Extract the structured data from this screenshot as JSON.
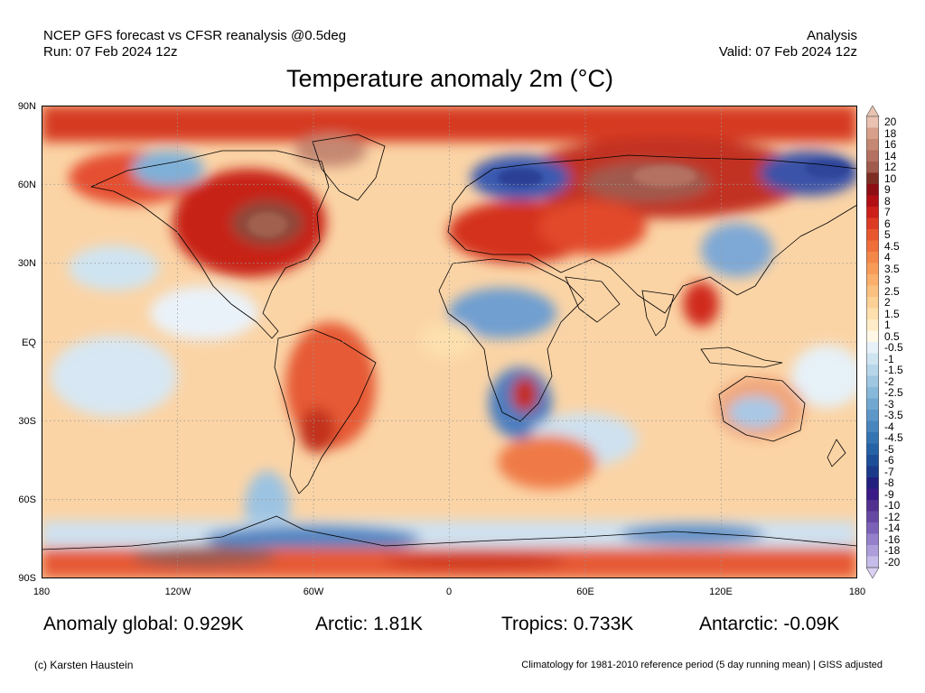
{
  "header": {
    "left_line1": "NCEP GFS forecast vs CFSR reanalysis @0.5deg",
    "left_line2": "Run: 07 Feb 2024 12z",
    "right_line1": "Analysis",
    "right_line2": "Valid: 07 Feb 2024 12z"
  },
  "title": "Temperature anomaly 2m (°C)",
  "axes": {
    "lat_labels": [
      "90N",
      "60N",
      "30N",
      "EQ",
      "30S",
      "60S",
      "90S"
    ],
    "lon_labels": [
      "180",
      "120W",
      "60W",
      "0",
      "60E",
      "120E",
      "180"
    ]
  },
  "legend": {
    "labels": [
      "20",
      "18",
      "16",
      "14",
      "12",
      "10",
      "9",
      "8",
      "7",
      "6",
      "5",
      "4.5",
      "4",
      "3.5",
      "3",
      "2.5",
      "2",
      "1.5",
      "1",
      "0.5",
      "-0.5",
      "-1",
      "-1.5",
      "-2",
      "-2.5",
      "-3",
      "-3.5",
      "-4",
      "-4.5",
      "-5",
      "-6",
      "-7",
      "-8",
      "-9",
      "-10",
      "-12",
      "-14",
      "-16",
      "-18",
      "-20"
    ],
    "colors": [
      "#e9c2b1",
      "#d8a08a",
      "#c58872",
      "#b47060",
      "#a05a4e",
      "#7d2d22",
      "#8e0e14",
      "#b10f14",
      "#cc1f1a",
      "#dd3a24",
      "#e8572e",
      "#ef6f3a",
      "#f38748",
      "#f79c58",
      "#faaf6b",
      "#fbc180",
      "#fcd196",
      "#fde0ad",
      "#feedc8",
      "#fff8e6",
      "#e6f1f8",
      "#cfe4f1",
      "#b7d6ea",
      "#9fc7e2",
      "#88b8da",
      "#71a8d1",
      "#5c97c8",
      "#4886bd",
      "#3574b2",
      "#2562a6",
      "#1d4e98",
      "#1b3b8a",
      "#221f7e",
      "#3a1a86",
      "#52308f",
      "#6648a4",
      "#7b62b8",
      "#9480cb",
      "#ad9edb",
      "#c6bce9"
    ],
    "top_arrow_color": "#e9c2b1",
    "bottom_arrow_color": "#d9d0f2"
  },
  "stats": {
    "global": "Anomaly global: 0.929K",
    "arctic": "Arctic: 1.81K",
    "tropics": "Tropics: 0.733K",
    "antarctic": "Antarctic: -0.09K"
  },
  "footer": {
    "copyright": "(c) Karsten Haustein",
    "note": "Climatology for 1981-2010 reference period (5 day running mean) | GISS adjusted"
  }
}
